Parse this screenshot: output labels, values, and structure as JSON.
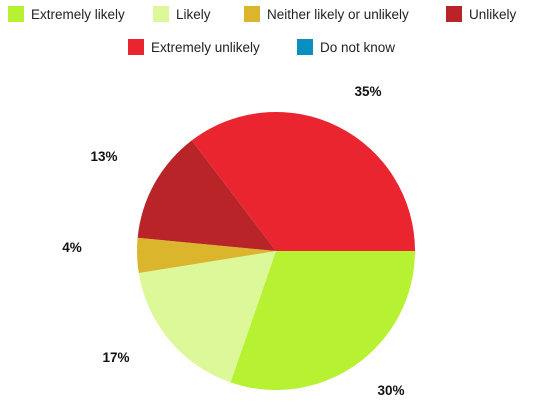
{
  "chart_data": {
    "type": "pie",
    "categories": [
      "Extremely likely",
      "Likely",
      "Neither likely or unlikely",
      "Unlikely",
      "Extremely unlikely",
      "Do not know"
    ],
    "values": [
      30,
      17,
      4,
      13,
      35,
      0
    ],
    "value_labels": [
      "30%",
      "17%",
      "4%",
      "13%",
      "35%",
      ""
    ],
    "colors": [
      "#b7f232",
      "#ddf898",
      "#dbb52c",
      "#b92428",
      "#ea2530",
      "#0a8fc2"
    ],
    "start_angle_deg": 0,
    "direction": "clockwise",
    "legend_position": "top"
  }
}
